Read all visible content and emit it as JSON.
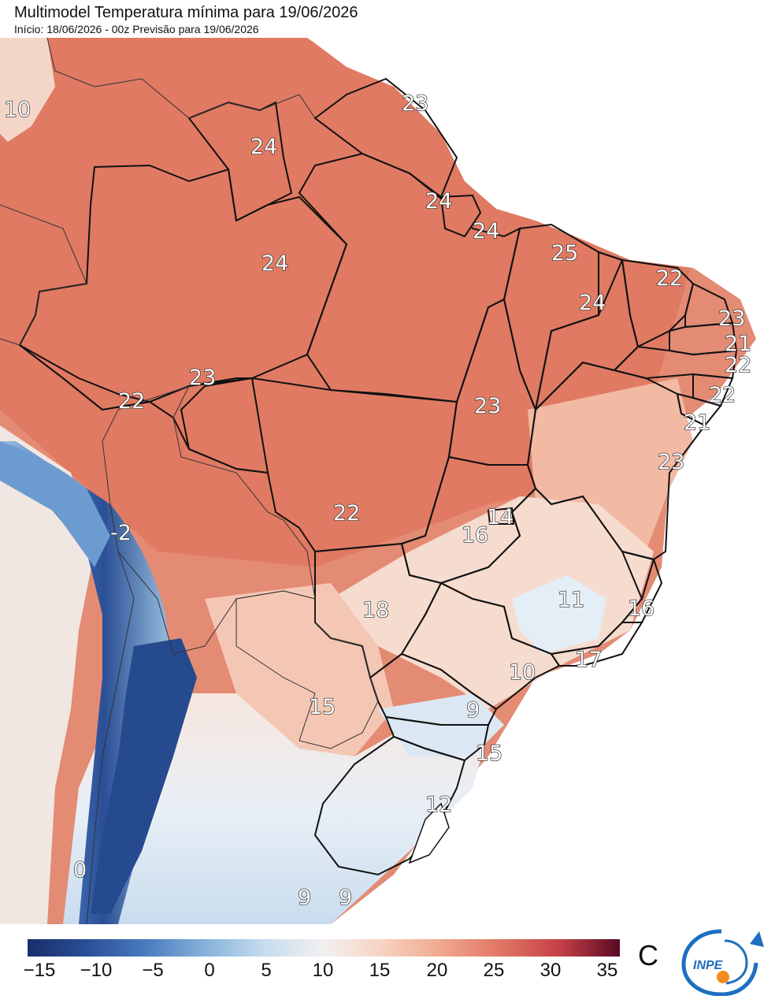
{
  "header": {
    "title": "Multimodel Temperatura mínima para 19/06/2026",
    "subtitle": "Início: 18/06/2026 - 00z  Previsão para 19/06/2026"
  },
  "map": {
    "variable": "Temperatura mínima",
    "labels": [
      {
        "id": "l1",
        "value": "10"
      },
      {
        "id": "l2",
        "value": "23"
      },
      {
        "id": "l3",
        "value": "24"
      },
      {
        "id": "l4",
        "value": "24"
      },
      {
        "id": "l5",
        "value": "24"
      },
      {
        "id": "l6",
        "value": "24"
      },
      {
        "id": "l7",
        "value": "25"
      },
      {
        "id": "l8",
        "value": "22"
      },
      {
        "id": "l9",
        "value": "24"
      },
      {
        "id": "l10",
        "value": "23"
      },
      {
        "id": "l11",
        "value": "21"
      },
      {
        "id": "l12",
        "value": "22"
      },
      {
        "id": "l13",
        "value": "22"
      },
      {
        "id": "l14",
        "value": "23"
      },
      {
        "id": "l15",
        "value": "22"
      },
      {
        "id": "l16",
        "value": "23"
      },
      {
        "id": "l17",
        "value": "21"
      },
      {
        "id": "l18",
        "value": "23"
      },
      {
        "id": "l19",
        "value": "-2"
      },
      {
        "id": "l20",
        "value": "22"
      },
      {
        "id": "l21",
        "value": "14"
      },
      {
        "id": "l22",
        "value": "16"
      },
      {
        "id": "l23",
        "value": "11"
      },
      {
        "id": "l24",
        "value": "16"
      },
      {
        "id": "l25",
        "value": "18"
      },
      {
        "id": "l26",
        "value": "17"
      },
      {
        "id": "l27",
        "value": "10"
      },
      {
        "id": "l28",
        "value": "15"
      },
      {
        "id": "l29",
        "value": "9"
      },
      {
        "id": "l30",
        "value": "15"
      },
      {
        "id": "l31",
        "value": "12"
      },
      {
        "id": "l32",
        "value": "0"
      },
      {
        "id": "l33",
        "value": "9"
      },
      {
        "id": "l34",
        "value": "9"
      }
    ]
  },
  "legend": {
    "unit": "C",
    "ticks": [
      "−15",
      "−10",
      "−5",
      "0",
      "5",
      "10",
      "15",
      "20",
      "25",
      "30",
      "35"
    ],
    "colors": [
      "#1b2e6b",
      "#2a4f96",
      "#4a7bbf",
      "#86b2da",
      "#c6dcef",
      "#f2f1f0",
      "#f8d2c0",
      "#efa78d",
      "#e07563",
      "#c43f47",
      "#8b0d34",
      "#5a0a24"
    ]
  },
  "logo": {
    "text": "INPE"
  }
}
